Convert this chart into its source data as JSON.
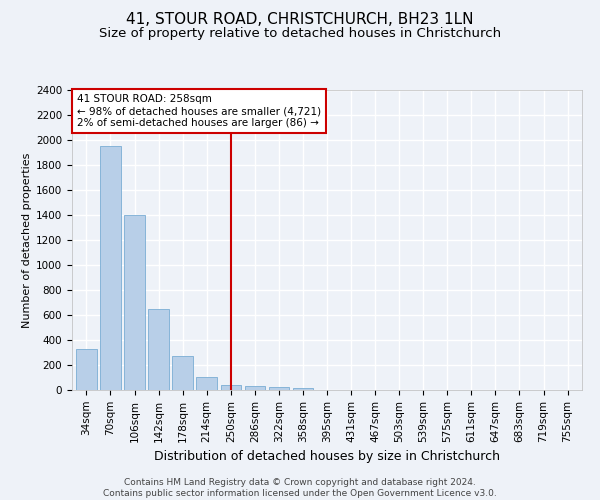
{
  "title": "41, STOUR ROAD, CHRISTCHURCH, BH23 1LN",
  "subtitle": "Size of property relative to detached houses in Christchurch",
  "xlabel": "Distribution of detached houses by size in Christchurch",
  "ylabel": "Number of detached properties",
  "categories": [
    "34sqm",
    "70sqm",
    "106sqm",
    "142sqm",
    "178sqm",
    "214sqm",
    "250sqm",
    "286sqm",
    "322sqm",
    "358sqm",
    "395sqm",
    "431sqm",
    "467sqm",
    "503sqm",
    "539sqm",
    "575sqm",
    "611sqm",
    "647sqm",
    "683sqm",
    "719sqm",
    "755sqm"
  ],
  "values": [
    325,
    1950,
    1400,
    650,
    275,
    105,
    40,
    35,
    22,
    15,
    0,
    0,
    0,
    0,
    0,
    0,
    0,
    0,
    0,
    0,
    0
  ],
  "bar_color": "#b8cfe8",
  "bar_edge_color": "#7aadd4",
  "vline_pos": 6.0,
  "vline_color": "#cc0000",
  "annotation_line1": "41 STOUR ROAD: 258sqm",
  "annotation_line2": "← 98% of detached houses are smaller (4,721)",
  "annotation_line3": "2% of semi-detached houses are larger (86) →",
  "ylim": [
    0,
    2400
  ],
  "yticks": [
    0,
    200,
    400,
    600,
    800,
    1000,
    1200,
    1400,
    1600,
    1800,
    2000,
    2200,
    2400
  ],
  "footer1": "Contains HM Land Registry data © Crown copyright and database right 2024.",
  "footer2": "Contains public sector information licensed under the Open Government Licence v3.0.",
  "bg_color": "#eef2f8",
  "grid_color": "#ffffff",
  "title_fontsize": 11,
  "subtitle_fontsize": 9.5,
  "ylabel_fontsize": 8,
  "xlabel_fontsize": 9,
  "tick_fontsize": 7.5,
  "footer_fontsize": 6.5,
  "ann_fontsize": 7.5
}
